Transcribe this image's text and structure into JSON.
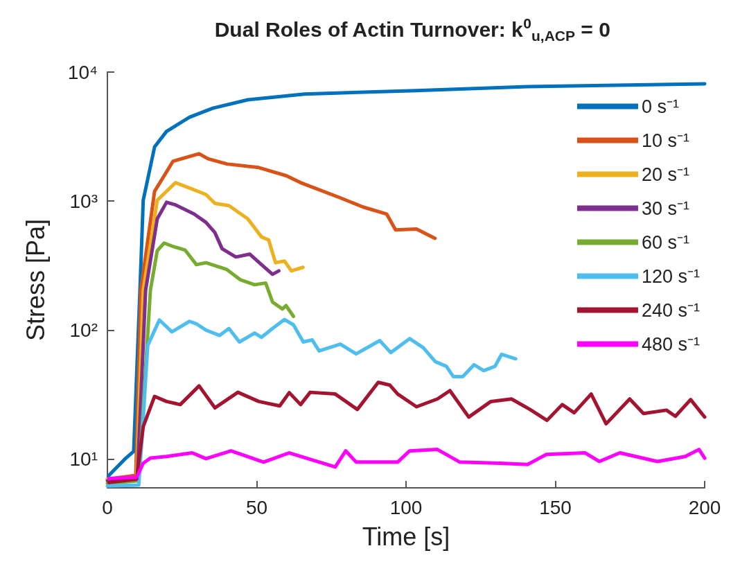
{
  "chart_data": {
    "type": "line",
    "title": "Dual Roles of Actin Turnover: k$^{0}$$_{u,ACP}$ = 0",
    "xlabel": "Time [s]",
    "ylabel": "Stress [Pa]",
    "log": "y",
    "xlim": [
      0,
      200
    ],
    "xticks": [
      0,
      50,
      100,
      150,
      200
    ],
    "ylim": [
      6,
      10000
    ],
    "yticks": [
      {
        "value": 10,
        "label": "10¹"
      },
      {
        "value": 100,
        "label": "10²"
      },
      {
        "value": 1000,
        "label": "10³"
      },
      {
        "value": 10000,
        "label": "10⁴"
      }
    ],
    "grid": false,
    "legend": "top right",
    "series": [
      {
        "name": "0 s⁻¹",
        "color": "#0072bd",
        "x": [
          0.5,
          5.8,
          8.8,
          10,
          10.9,
          12,
          15.8,
          19.8,
          27.5,
          35.3,
          47,
          66,
          103.5,
          140.7,
          200
        ],
        "values": [
          7.5,
          10,
          11.5,
          60,
          204,
          1016,
          2630,
          3470,
          4470,
          5250,
          6100,
          6760,
          7180,
          7720,
          8110
        ]
      },
      {
        "name": "10 s⁻¹",
        "color": "#d95319",
        "x": [
          0,
          9.5,
          11.2,
          15.8,
          22,
          30.7,
          33.7,
          40,
          50.7,
          60,
          64.7,
          78,
          85.6,
          93.5,
          96.5,
          103.5,
          109.7
        ],
        "values": [
          7,
          7.5,
          204,
          1190,
          2040,
          2330,
          2130,
          1940,
          1820,
          1570,
          1390,
          1060,
          900,
          795,
          598,
          607,
          515
        ]
      },
      {
        "name": "20 s⁻¹",
        "color": "#edb120",
        "x": [
          0,
          9.8,
          12,
          16.7,
          22.8,
          29,
          33,
          36,
          40.7,
          47,
          51.6,
          54,
          56.3,
          59.3,
          61.6,
          65.5
        ],
        "values": [
          7,
          7.2,
          204,
          1016,
          1390,
          1225,
          1125,
          960,
          923,
          730,
          528,
          500,
          333,
          343,
          288,
          307
        ]
      },
      {
        "name": "30 s⁻¹",
        "color": "#7e2f8e",
        "x": [
          0,
          10,
          12.8,
          16.7,
          19.8,
          22.8,
          29,
          33,
          36,
          38.4,
          43,
          47.7,
          51.6,
          55.3,
          57.4
        ],
        "values": [
          6.8,
          7,
          204,
          730,
          980,
          935,
          795,
          685,
          570,
          428,
          369,
          388,
          322,
          271,
          288
        ]
      },
      {
        "name": "60 s⁻¹",
        "color": "#77ac30",
        "x": [
          0,
          10.5,
          14.4,
          16.7,
          19,
          22,
          26,
          29.8,
          33,
          40,
          44.6,
          49.3,
          53,
          55.3,
          58.6,
          59.8,
          62.3
        ],
        "values": [
          6.5,
          6.8,
          204,
          413,
          473,
          445,
          418,
          322,
          333,
          295,
          245,
          225,
          232,
          165,
          146,
          155,
          128
        ]
      },
      {
        "name": "120 s⁻¹",
        "color": "#4dbeee",
        "x": [
          0,
          10.5,
          11.6,
          13.5,
          17.4,
          21.6,
          27.5,
          29.8,
          33,
          37.6,
          40.7,
          44.2,
          49.3,
          51.6,
          55.3,
          59.3,
          62.3,
          65.6,
          68.6,
          70.9,
          78,
          83.3,
          91.2,
          94.9,
          101.2,
          105.8,
          109.8,
          113.5,
          115.8,
          119,
          122.8,
          126,
          129.8,
          132,
          136.7
        ],
        "values": [
          6.2,
          6.3,
          14.7,
          76,
          120,
          97,
          117,
          112,
          100,
          91,
          103,
          81,
          95,
          88,
          103,
          121,
          110,
          81,
          84,
          69,
          78,
          65.5,
          83,
          67,
          86,
          73,
          57,
          52.5,
          43.7,
          43.7,
          54,
          48.6,
          52.5,
          65,
          60
        ]
      },
      {
        "name": "240 s⁻¹",
        "color": "#a2142f",
        "x": [
          0.5,
          9.8,
          12,
          15.8,
          19.8,
          24.4,
          30.7,
          36,
          43.7,
          50.7,
          57.7,
          60.9,
          64.7,
          67.9,
          76.3,
          83.7,
          90.7,
          94.6,
          97.2,
          103.5,
          110.5,
          114.7,
          121,
          128.4,
          135.3,
          141.5,
          147.2,
          152.3,
          156.3,
          162,
          167,
          174.9,
          179.5,
          187.2,
          190.2,
          195.3,
          200
        ],
        "values": [
          6.6,
          7,
          17.9,
          30.7,
          28,
          26.5,
          37,
          25,
          33,
          28,
          25.9,
          32.8,
          26.5,
          33,
          32,
          24.3,
          39.4,
          37.5,
          32,
          25.5,
          29.3,
          34,
          21.2,
          28,
          29.3,
          24.3,
          20,
          26.5,
          22.9,
          32,
          18.8,
          29.3,
          22.6,
          24,
          21.5,
          29,
          21.2
        ]
      },
      {
        "name": "480 s⁻¹",
        "color": "#ff00ff",
        "x": [
          0.5,
          9.8,
          12,
          14.4,
          19.8,
          28.4,
          33,
          41.4,
          52.3,
          60.9,
          76.3,
          79.8,
          83.3,
          97.2,
          101.2,
          110.5,
          118,
          131.4,
          140.7,
          147,
          160,
          164.7,
          171.6,
          184.2,
          193.5,
          198.1,
          200
        ],
        "values": [
          7.1,
          7.25,
          9.3,
          10.2,
          10.5,
          11.2,
          10.1,
          11.6,
          9.5,
          11.2,
          8.7,
          11.6,
          9.5,
          9.5,
          11.6,
          11.9,
          9.5,
          9.3,
          9.1,
          10.9,
          11.2,
          9.6,
          11.2,
          9.6,
          10.5,
          11.9,
          10.2
        ]
      }
    ]
  }
}
